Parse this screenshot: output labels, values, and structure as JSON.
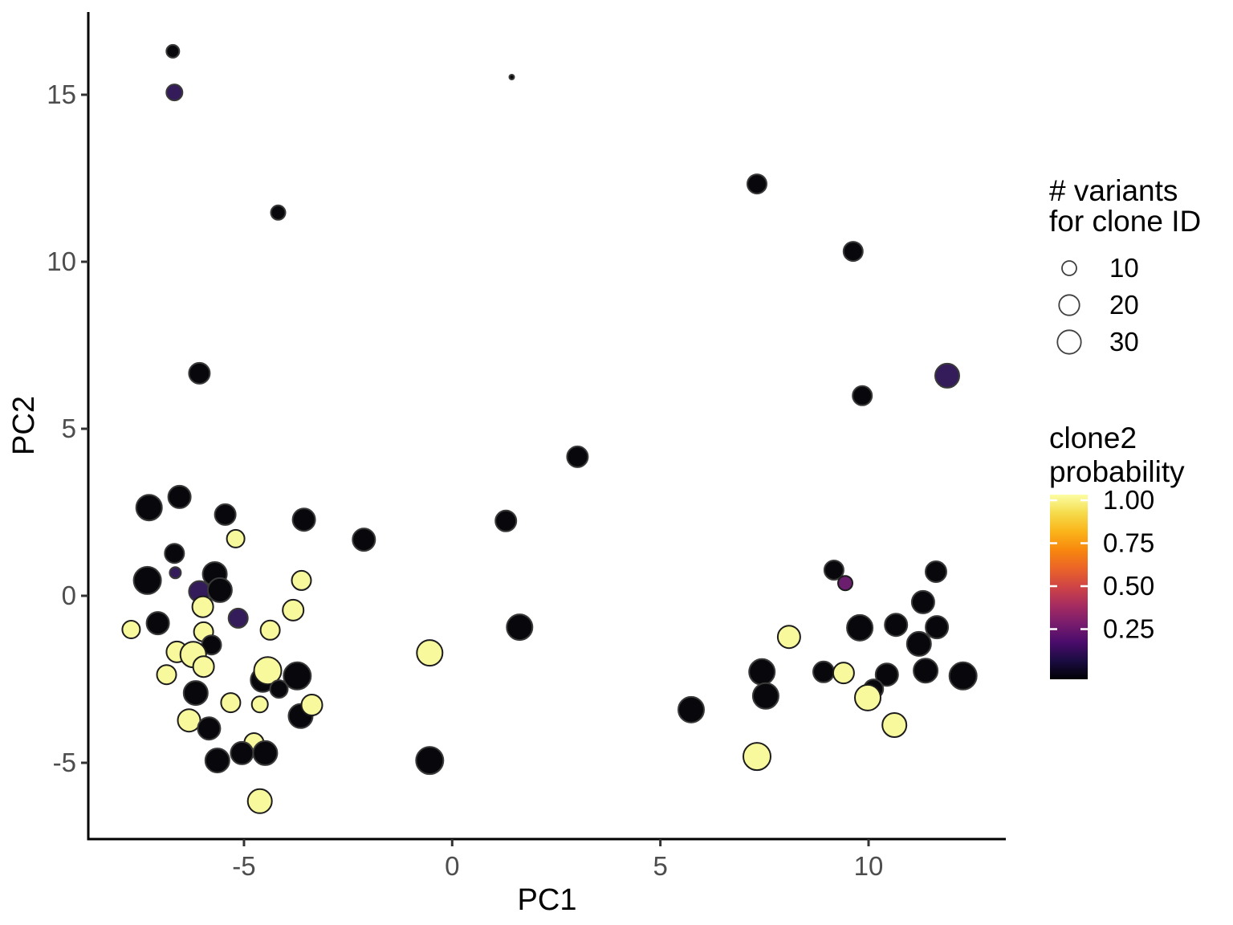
{
  "chart_data": {
    "type": "scatter",
    "title": "",
    "xlabel": "PC1",
    "ylabel": "PC2",
    "x_tick_labels": [
      "-5",
      "0",
      "5",
      "10"
    ],
    "x_tick_values": [
      -5,
      0,
      5,
      10
    ],
    "y_tick_labels": [
      "15",
      "10",
      "5",
      "0",
      "-5"
    ],
    "y_tick_values": [
      15,
      10,
      5,
      0,
      -5
    ],
    "xlim": [
      -8.7,
      13.3
    ],
    "ylim": [
      -7.3,
      17.5
    ],
    "grid": false,
    "legend_position": "right",
    "size_legend": {
      "title_lines": [
        "# variants",
        "for clone ID"
      ],
      "entries": [
        {
          "label": "10",
          "radius_px": 9
        },
        {
          "label": "20",
          "radius_px": 12.7
        },
        {
          "label": "30",
          "radius_px": 14.7
        }
      ]
    },
    "color_legend": {
      "title_lines": [
        "clone2",
        "probability"
      ],
      "tick_labels": [
        "1.00",
        "0.75",
        "0.50",
        "0.25"
      ],
      "tick_values": [
        1.0,
        0.75,
        0.5,
        0.25
      ],
      "colormap_top_to_bottom": [
        {
          "offset": 0.0,
          "color": "#FCFEA4"
        },
        {
          "offset": 0.1,
          "color": "#F5DB4B"
        },
        {
          "offset": 0.2,
          "color": "#FBB41A"
        },
        {
          "offset": 0.3,
          "color": "#F8870E"
        },
        {
          "offset": 0.4,
          "color": "#EB6428"
        },
        {
          "offset": 0.5,
          "color": "#CF4446"
        },
        {
          "offset": 0.6,
          "color": "#A62C60"
        },
        {
          "offset": 0.7,
          "color": "#781C6D"
        },
        {
          "offset": 0.8,
          "color": "#4A0C6B"
        },
        {
          "offset": 0.9,
          "color": "#1B0C41"
        },
        {
          "offset": 1.0,
          "color": "#000004"
        }
      ]
    },
    "point_columns": [
      "pc1",
      "pc2",
      "radius_px",
      "color_key",
      "variants_est",
      "prob_est"
    ],
    "point_colors": {
      "k": "#08080C",
      "p": "#341B59",
      "m": "#6B1E6E",
      "y": "#F8F89D"
    },
    "points": [
      [
        -6.71,
        16.3,
        8,
        "k",
        8,
        0.02
      ],
      [
        -6.67,
        15.07,
        10,
        "p",
        13,
        0.18
      ],
      [
        -4.18,
        11.47,
        9,
        "k",
        10,
        0.02
      ],
      [
        1.43,
        15.53,
        3,
        "k",
        1,
        0.02
      ],
      [
        -6.07,
        6.66,
        13,
        "k",
        22,
        0.02
      ],
      [
        7.32,
        12.33,
        12,
        "k",
        18,
        0.02
      ],
      [
        9.63,
        10.31,
        12,
        "k",
        18,
        0.02
      ],
      [
        11.89,
        6.59,
        15,
        "p",
        29,
        0.18
      ],
      [
        9.85,
        5.99,
        12,
        "k",
        18,
        0.02
      ],
      [
        3.01,
        4.16,
        13,
        "k",
        22,
        0.02
      ],
      [
        1.29,
        2.24,
        13,
        "k",
        22,
        0.02
      ],
      [
        -2.12,
        1.68,
        14,
        "k",
        25,
        0.02
      ],
      [
        1.62,
        -0.94,
        16,
        "k",
        33,
        0.02
      ],
      [
        -0.54,
        -1.71,
        16,
        "y",
        33,
        1.0
      ],
      [
        -0.54,
        -4.93,
        17,
        "k",
        37,
        0.02
      ],
      [
        -7.28,
        2.64,
        16,
        "k",
        33,
        0.02
      ],
      [
        -6.55,
        2.96,
        14,
        "k",
        25,
        0.02
      ],
      [
        -5.45,
        2.43,
        13,
        "k",
        22,
        0.02
      ],
      [
        -5.2,
        1.71,
        11,
        "y",
        15,
        1.0
      ],
      [
        -6.67,
        1.27,
        12,
        "k",
        18,
        0.02
      ],
      [
        -6.65,
        0.69,
        7,
        "p",
        6,
        0.18
      ],
      [
        -7.32,
        0.46,
        17,
        "k",
        37,
        0.02
      ],
      [
        -5.7,
        0.65,
        15,
        "k",
        29,
        0.02
      ],
      [
        -6.07,
        0.13,
        13,
        "p",
        22,
        0.18
      ],
      [
        -5.58,
        0.17,
        15,
        "k",
        29,
        0.02
      ],
      [
        -5.99,
        -0.33,
        13,
        "y",
        22,
        1.0
      ],
      [
        -7.07,
        -0.82,
        14,
        "k",
        25,
        0.02
      ],
      [
        -7.71,
        -1.01,
        11,
        "y",
        15,
        1.0
      ],
      [
        -3.56,
        2.28,
        14,
        "k",
        25,
        0.02
      ],
      [
        -3.62,
        0.46,
        12,
        "y",
        18,
        1.0
      ],
      [
        -3.82,
        -0.43,
        13,
        "y",
        22,
        1.0
      ],
      [
        -5.14,
        -0.67,
        12,
        "p",
        18,
        0.18
      ],
      [
        -5.97,
        -1.08,
        12,
        "y",
        18,
        1.0
      ],
      [
        -4.37,
        -1.03,
        12,
        "y",
        18,
        1.0
      ],
      [
        -5.78,
        -1.47,
        12,
        "k",
        18,
        0.02
      ],
      [
        -6.61,
        -1.68,
        13,
        "y",
        22,
        1.0
      ],
      [
        -6.22,
        -1.76,
        16,
        "y",
        33,
        1.0
      ],
      [
        -5.97,
        -2.12,
        13,
        "y",
        22,
        1.0
      ],
      [
        -6.86,
        -2.36,
        12,
        "y",
        18,
        1.0
      ],
      [
        -6.16,
        -2.91,
        15,
        "k",
        29,
        0.02
      ],
      [
        -5.32,
        -3.2,
        12,
        "y",
        18,
        1.0
      ],
      [
        -6.32,
        -3.73,
        14,
        "y",
        25,
        1.0
      ],
      [
        -5.84,
        -3.97,
        14,
        "k",
        25,
        0.02
      ],
      [
        -4.55,
        -2.52,
        15,
        "k",
        29,
        0.02
      ],
      [
        -4.43,
        -2.24,
        17,
        "y",
        37,
        1.0
      ],
      [
        -3.72,
        -2.4,
        17,
        "k",
        37,
        0.02
      ],
      [
        -4.16,
        -2.79,
        11,
        "k",
        15,
        0.02
      ],
      [
        -4.62,
        -3.25,
        10,
        "y",
        13,
        1.0
      ],
      [
        -3.64,
        -3.6,
        15,
        "k",
        29,
        0.02
      ],
      [
        -3.37,
        -3.27,
        13,
        "y",
        22,
        1.0
      ],
      [
        -4.76,
        -4.4,
        12,
        "y",
        18,
        1.0
      ],
      [
        -5.64,
        -4.93,
        15,
        "k",
        29,
        0.02
      ],
      [
        -5.05,
        -4.71,
        14,
        "k",
        25,
        0.02
      ],
      [
        -4.49,
        -4.71,
        15,
        "k",
        29,
        0.02
      ],
      [
        -4.62,
        -6.15,
        15,
        "y",
        29,
        1.0
      ],
      [
        9.17,
        0.77,
        12,
        "k",
        18,
        0.02
      ],
      [
        9.44,
        0.38,
        9,
        "m",
        10,
        0.35
      ],
      [
        11.62,
        0.72,
        13,
        "k",
        22,
        0.02
      ],
      [
        11.31,
        -0.19,
        14,
        "k",
        25,
        0.02
      ],
      [
        9.79,
        -0.96,
        16,
        "k",
        33,
        0.02
      ],
      [
        10.66,
        -0.87,
        14,
        "k",
        25,
        0.02
      ],
      [
        11.64,
        -0.94,
        14,
        "k",
        25,
        0.02
      ],
      [
        11.21,
        -1.44,
        15,
        "k",
        29,
        0.02
      ],
      [
        8.09,
        -1.23,
        14,
        "y",
        25,
        1.0
      ],
      [
        8.92,
        -2.28,
        13,
        "k",
        22,
        0.02
      ],
      [
        9.4,
        -2.31,
        13,
        "y",
        22,
        1.0
      ],
      [
        10.44,
        -2.36,
        14,
        "k",
        25,
        0.02
      ],
      [
        11.37,
        -2.24,
        15,
        "k",
        29,
        0.02
      ],
      [
        12.27,
        -2.4,
        17,
        "k",
        37,
        0.02
      ],
      [
        7.44,
        -2.28,
        16,
        "k",
        33,
        0.02
      ],
      [
        7.53,
        -3.0,
        16,
        "k",
        33,
        0.02
      ],
      [
        5.74,
        -3.41,
        16,
        "k",
        33,
        0.02
      ],
      [
        10.12,
        -2.79,
        12,
        "k",
        18,
        0.02
      ],
      [
        9.98,
        -3.05,
        16,
        "y",
        33,
        1.0
      ],
      [
        10.62,
        -3.87,
        15,
        "y",
        29,
        1.0
      ],
      [
        7.32,
        -4.81,
        17,
        "y",
        37,
        1.0
      ]
    ],
    "style": {
      "axis_line_color": "#000000",
      "tick_color": "#333333",
      "tick_label_color": "#4D4D4D",
      "axis_title_color": "#000000",
      "point_stroke_dark": "#3A3A3A",
      "point_stroke_light": "#1C1C1C",
      "background": "#FFFFFF"
    }
  }
}
